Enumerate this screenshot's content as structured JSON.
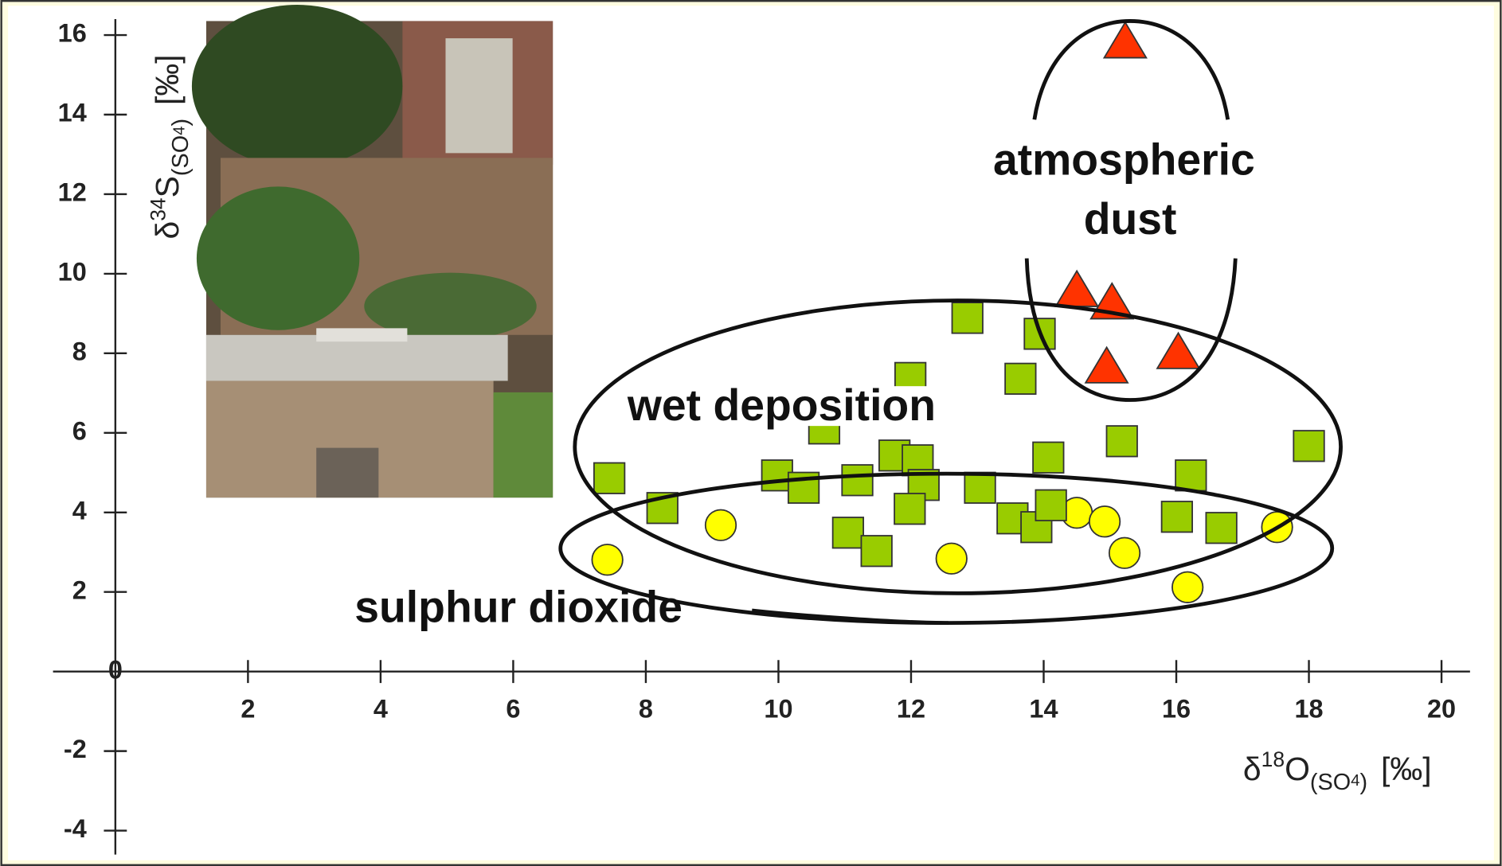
{
  "chart_data": {
    "type": "scatter",
    "xlim": [
      -0.94,
      20.43
    ],
    "ylim": [
      -4.6,
      16.4
    ],
    "xticks": [
      2,
      4,
      6,
      8,
      10,
      12,
      14,
      16,
      18,
      20
    ],
    "yticks": [
      -4,
      -2,
      0,
      2,
      4,
      6,
      8,
      10,
      12,
      14,
      16
    ],
    "x_label": [
      {
        "text": "δ"
      },
      {
        "text": "18",
        "style": "sup"
      },
      {
        "text": "O"
      },
      {
        "text": "(SO",
        "style": "sub"
      },
      {
        "text": "4",
        "style": "subsub"
      },
      {
        "text": ")",
        "style": "sub"
      },
      {
        "text": "[‰]",
        "style": "gap"
      }
    ],
    "y_label": [
      {
        "text": "δ"
      },
      {
        "text": "34",
        "style": "sup"
      },
      {
        "text": "S"
      },
      {
        "text": "(SO",
        "style": "sub"
      },
      {
        "text": "4",
        "style": "subsub"
      },
      {
        "text": ")",
        "style": "sub"
      },
      {
        "text": "[‰]",
        "style": "gap"
      }
    ],
    "series": [
      {
        "name": "sulphur dioxide",
        "marker": "circle",
        "color": "#ffff00",
        "x": [
          7.42,
          9.13,
          12.61,
          14.5,
          14.92,
          15.22,
          16.17,
          17.52
        ],
        "values": [
          2.81,
          3.68,
          2.84,
          3.99,
          3.77,
          2.98,
          2.12,
          3.63
        ]
      },
      {
        "name": "wet deposition",
        "marker": "square",
        "color": "#99cc00",
        "x": [
          7.45,
          8.25,
          9.98,
          10.38,
          10.69,
          11.19,
          11.05,
          11.48,
          11.75,
          11.99,
          12.1,
          12.19,
          11.98,
          12.85,
          13.04,
          13.65,
          13.94,
          13.53,
          13.89,
          14.07,
          14.11,
          15.18,
          16.22,
          16.01,
          16.68,
          18.0
        ],
        "values": [
          4.86,
          4.11,
          4.93,
          4.62,
          6.11,
          4.81,
          3.49,
          3.03,
          5.43,
          7.38,
          5.31,
          4.69,
          4.09,
          8.89,
          4.62,
          7.36,
          8.49,
          3.85,
          3.63,
          5.38,
          4.18,
          5.79,
          4.93,
          3.89,
          3.61,
          5.67
        ]
      },
      {
        "name": "atmospheric dust",
        "marker": "triangle",
        "color": "#ff3300",
        "x": [
          15.23,
          14.5,
          15.03,
          16.03,
          14.95
        ],
        "values": [
          15.79,
          9.54,
          9.23,
          7.98,
          7.62
        ]
      }
    ]
  }
}
